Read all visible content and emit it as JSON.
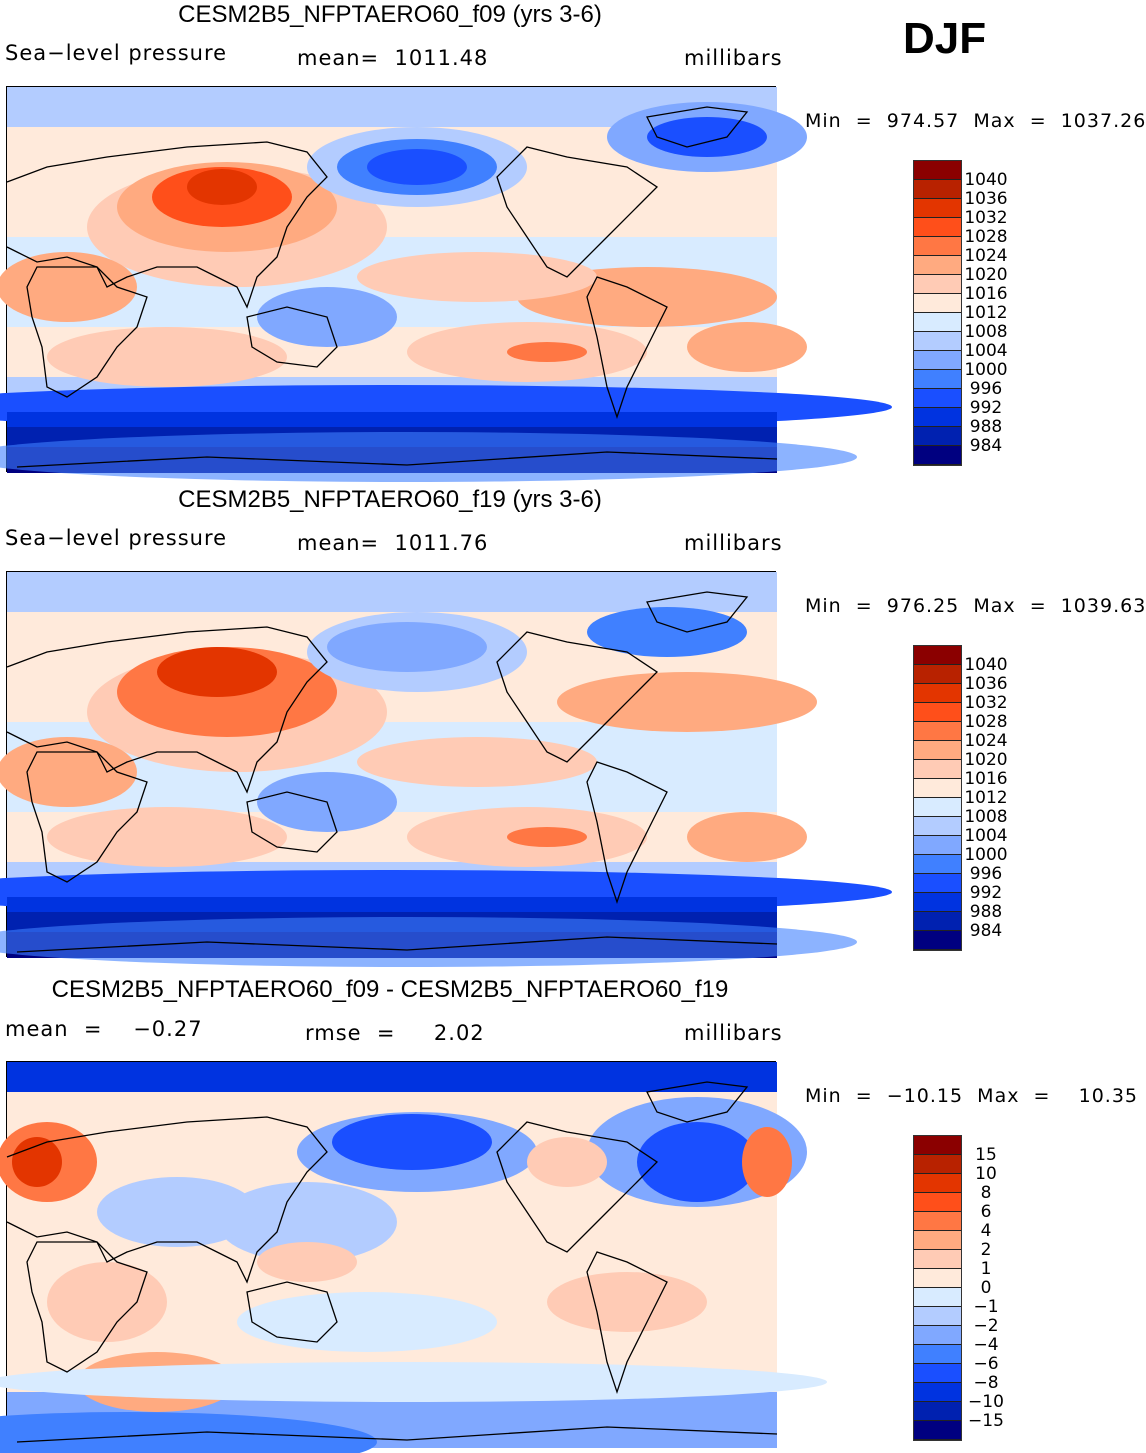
{
  "season": "DJF",
  "colors": [
    "#8b0000",
    "#b82200",
    "#e33500",
    "#ff4f1a",
    "#ff7744",
    "#ffaa80",
    "#ffcbb5",
    "#ffeadb",
    "#d8ebff",
    "#b3ccff",
    "#80a8ff",
    "#4080ff",
    "#1a4fff",
    "#0033e0",
    "#0021b0",
    "#000080"
  ],
  "panels": [
    {
      "title": "CESM2B5_NFPTAERO60_f09 (yrs 3-6)",
      "left": "Sea−level pressure",
      "center": "mean=  1011.48",
      "units": "millibars",
      "minmax": "Min  =  974.57  Max  =  1037.26",
      "levels": [
        "1040",
        "1036",
        "1032",
        "1028",
        "1024",
        "1020",
        "1016",
        "1012",
        "1008",
        "1004",
        "1000",
        "996",
        "992",
        "988",
        "984"
      ]
    },
    {
      "title": "CESM2B5_NFPTAERO60_f19 (yrs 3-6)",
      "left": "Sea−level pressure",
      "center": "mean=  1011.76",
      "units": "millibars",
      "minmax": "Min  =  976.25  Max  =  1039.63",
      "levels": [
        "1040",
        "1036",
        "1032",
        "1028",
        "1024",
        "1020",
        "1016",
        "1012",
        "1008",
        "1004",
        "1000",
        "996",
        "992",
        "988",
        "984"
      ]
    },
    {
      "title": "CESM2B5_NFPTAERO60_f09 - CESM2B5_NFPTAERO60_f19",
      "left": "mean  =    −0.27",
      "center": "rmse  =     2.02",
      "units": "millibars",
      "minmax": "Min  =  −10.15  Max  =    10.35",
      "levels": [
        "15",
        "10",
        "8",
        "6",
        "4",
        "2",
        "1",
        "0",
        "−1",
        "−2",
        "−4",
        "−6",
        "−8",
        "−10",
        "−15"
      ]
    }
  ]
}
